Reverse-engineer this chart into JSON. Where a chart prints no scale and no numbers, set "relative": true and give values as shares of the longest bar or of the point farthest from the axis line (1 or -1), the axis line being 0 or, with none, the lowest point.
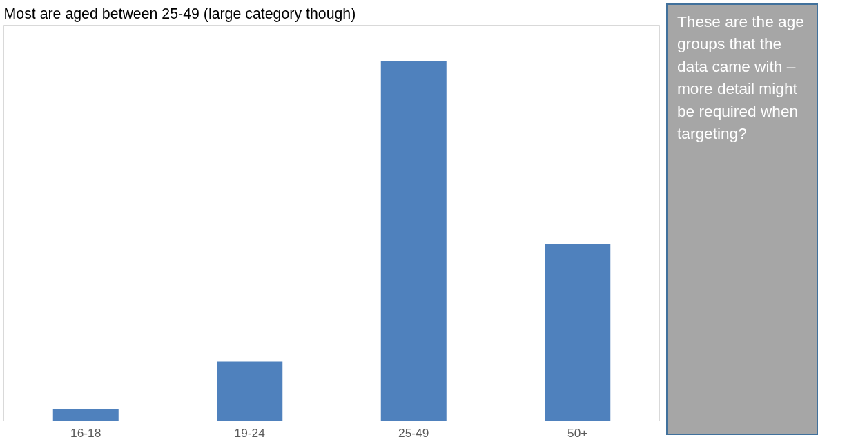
{
  "chart_data": {
    "type": "bar",
    "title": "Most are aged between 25-49 (large category though)",
    "categories": [
      "16-18",
      "19-24",
      "25-49",
      "50+"
    ],
    "values": [
      0.032,
      0.165,
      1,
      0.492
    ],
    "color": "#4f81bd",
    "relative": true,
    "grid": false,
    "annotations": [
      "These are the age groups that the data came with – more detail might be required when targeting?"
    ]
  }
}
